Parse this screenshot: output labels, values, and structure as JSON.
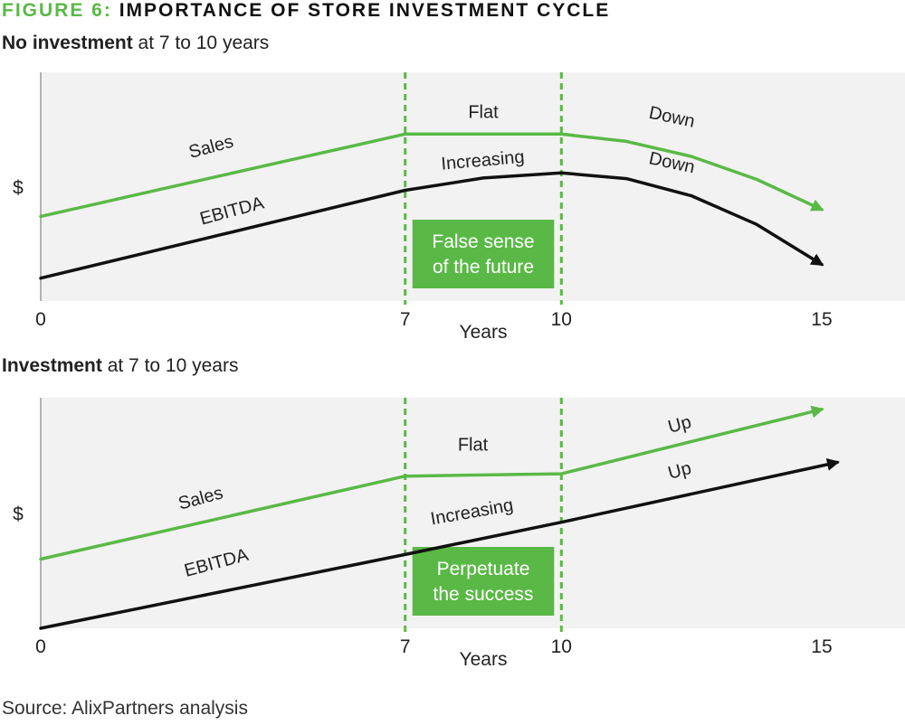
{
  "figure": {
    "number": "FIGURE 6:",
    "title": "IMPORTANCE OF STORE INVESTMENT CYCLE"
  },
  "source": "Source: AlixPartners analysis",
  "colors": {
    "sales": "#5ab946",
    "ebitda": "#111111",
    "panel_bg": "#f2f2f2",
    "box": "#5ab946"
  },
  "chart_data": [
    {
      "type": "line",
      "heading_bold": "No investment",
      "heading_rest": " at 7 to 10 years",
      "ylabel": "$",
      "xlabel": "Years",
      "xlim": [
        0,
        16.6
      ],
      "ylim": [
        0,
        10
      ],
      "marker_lines": [
        7,
        10
      ],
      "xticks": [
        {
          "value": 0,
          "label": "0"
        },
        {
          "value": 7,
          "label": "7"
        },
        {
          "value": 10,
          "label": "10"
        },
        {
          "value": 15,
          "label": "15"
        }
      ],
      "series": [
        {
          "name": "Sales",
          "x": [
            0,
            1.75,
            3.5,
            5.25,
            7,
            8.5,
            10,
            11.25,
            12.5,
            13.75,
            15
          ],
          "y": [
            3.7,
            4.6,
            5.5,
            6.4,
            7.3,
            7.3,
            7.3,
            6.98,
            6.32,
            5.32,
            4.0
          ]
        },
        {
          "name": "EBITDA",
          "x": [
            0,
            1.75,
            3.5,
            5.25,
            7,
            8.5,
            10,
            11.25,
            12.5,
            13.75,
            15
          ],
          "y": [
            1.0,
            1.96,
            2.92,
            3.88,
            4.84,
            5.38,
            5.6,
            5.35,
            4.6,
            3.35,
            1.6
          ]
        }
      ],
      "annotations": [
        {
          "text": "Sales",
          "x": 3.3,
          "y": 6.5,
          "angle": -15
        },
        {
          "text": "EBITDA",
          "x": 3.7,
          "y": 3.7,
          "angle": -15
        },
        {
          "text": "Flat",
          "x": 8.5,
          "y": 8.0,
          "angle": 0
        },
        {
          "text": "Increasing",
          "x": 8.5,
          "y": 5.9,
          "angle": -5
        },
        {
          "text": "Down",
          "x": 12.1,
          "y": 7.8,
          "angle": 12
        },
        {
          "text": "Down",
          "x": 12.1,
          "y": 5.8,
          "angle": 12
        }
      ],
      "box_lines": [
        "False sense",
        "of the future"
      ]
    },
    {
      "type": "line",
      "heading_bold": "Investment",
      "heading_rest": " at 7 to 10 years",
      "ylabel": "$",
      "xlabel": "Years",
      "xlim": [
        0,
        16.6
      ],
      "ylim": [
        0,
        10
      ],
      "marker_lines": [
        7,
        10
      ],
      "xticks": [
        {
          "value": 0,
          "label": "0"
        },
        {
          "value": 7,
          "label": "7"
        },
        {
          "value": 10,
          "label": "10"
        },
        {
          "value": 15,
          "label": "15"
        }
      ],
      "series": [
        {
          "name": "Sales",
          "x": [
            0,
            7,
            10,
            15
          ],
          "y": [
            3.0,
            6.6,
            6.7,
            9.5
          ]
        },
        {
          "name": "EBITDA",
          "x": [
            0,
            7,
            10,
            15.3
          ],
          "y": [
            0.0,
            3.2,
            4.6,
            7.2
          ]
        }
      ],
      "annotations": [
        {
          "text": "Sales",
          "x": 3.1,
          "y": 5.4,
          "angle": -15
        },
        {
          "text": "EBITDA",
          "x": 3.4,
          "y": 2.6,
          "angle": -15
        },
        {
          "text": "Flat",
          "x": 8.3,
          "y": 7.7,
          "angle": 0
        },
        {
          "text": "Increasing",
          "x": 8.3,
          "y": 4.8,
          "angle": -10
        },
        {
          "text": "Up",
          "x": 12.3,
          "y": 8.6,
          "angle": -15
        },
        {
          "text": "Up",
          "x": 12.3,
          "y": 6.6,
          "angle": -15
        }
      ],
      "box_lines": [
        "Perpetuate",
        "the success"
      ]
    }
  ]
}
